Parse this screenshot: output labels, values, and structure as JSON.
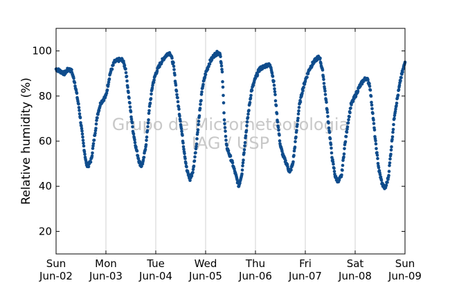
{
  "chart_data": {
    "type": "scatter",
    "title": "",
    "xlabel": "",
    "ylabel": "Relative humidity (%)",
    "ylim": [
      10,
      110
    ],
    "yticks": [
      20,
      40,
      60,
      80,
      100
    ],
    "xlim": [
      "2013-06-02",
      "2013-06-09"
    ],
    "x_ticks": [
      {
        "date": "2013-06-02",
        "day": "Sun",
        "date_label": "Jun-02"
      },
      {
        "date": "2013-06-03",
        "day": "Mon",
        "date_label": "Jun-03"
      },
      {
        "date": "2013-06-04",
        "day": "Tue",
        "date_label": "Jun-04"
      },
      {
        "date": "2013-06-05",
        "day": "Wed",
        "date_label": "Jun-05"
      },
      {
        "date": "2013-06-06",
        "day": "Thu",
        "date_label": "Jun-06"
      },
      {
        "date": "2013-06-07",
        "day": "Fri",
        "date_label": "Jun-07"
      },
      {
        "date": "2013-06-08",
        "day": "Sat",
        "date_label": "Jun-08"
      },
      {
        "date": "2013-06-09",
        "day": "Sun",
        "date_label": "Jun-09"
      }
    ],
    "grid": "vertical",
    "marker_color": "#0f4c8c",
    "watermark": [
      "Grupo de Micrometeorologia",
      "IAG / USP"
    ],
    "series": [
      {
        "name": "",
        "points": [
          [
            "2013-06-02 00:00",
            92
          ],
          [
            "2013-06-02 02:00",
            91
          ],
          [
            "2013-06-02 04:00",
            90
          ],
          [
            "2013-06-02 06:00",
            92
          ],
          [
            "2013-06-02 07:30",
            91
          ],
          [
            "2013-06-02 09:00",
            86
          ],
          [
            "2013-06-02 11:00",
            75
          ],
          [
            "2013-06-02 13:00",
            60
          ],
          [
            "2013-06-02 14:30",
            50
          ],
          [
            "2013-06-02 15:30",
            49
          ],
          [
            "2013-06-02 17:00",
            52
          ],
          [
            "2013-06-02 18:30",
            62
          ],
          [
            "2013-06-02 20:00",
            72
          ],
          [
            "2013-06-02 21:30",
            77
          ],
          [
            "2013-06-03 00:00",
            80
          ],
          [
            "2013-06-03 02:00",
            90
          ],
          [
            "2013-06-03 04:00",
            95
          ],
          [
            "2013-06-03 06:00",
            96
          ],
          [
            "2013-06-03 08:00",
            96
          ],
          [
            "2013-06-03 09:30",
            92
          ],
          [
            "2013-06-03 11:00",
            80
          ],
          [
            "2013-06-03 13:00",
            65
          ],
          [
            "2013-06-03 14:30",
            57
          ],
          [
            "2013-06-03 16:00",
            51
          ],
          [
            "2013-06-03 17:00",
            49
          ],
          [
            "2013-06-03 18:00",
            51
          ],
          [
            "2013-06-03 19:30",
            60
          ],
          [
            "2013-06-03 21:00",
            75
          ],
          [
            "2013-06-03 22:30",
            85
          ],
          [
            "2013-06-04 00:00",
            90
          ],
          [
            "2013-06-04 02:00",
            94
          ],
          [
            "2013-06-04 04:00",
            97
          ],
          [
            "2013-06-04 06:00",
            99
          ],
          [
            "2013-06-04 07:00",
            99
          ],
          [
            "2013-06-04 08:30",
            94
          ],
          [
            "2013-06-04 10:00",
            82
          ],
          [
            "2013-06-04 12:00",
            68
          ],
          [
            "2013-06-04 13:30",
            57
          ],
          [
            "2013-06-04 15:00",
            47
          ],
          [
            "2013-06-04 16:30",
            43
          ],
          [
            "2013-06-04 18:00",
            47
          ],
          [
            "2013-06-04 19:30",
            58
          ],
          [
            "2013-06-04 21:00",
            72
          ],
          [
            "2013-06-04 22:30",
            84
          ],
          [
            "2013-06-05 00:00",
            90
          ],
          [
            "2013-06-05 02:00",
            95
          ],
          [
            "2013-06-05 04:00",
            98
          ],
          [
            "2013-06-05 05:30",
            99
          ],
          [
            "2013-06-05 07:00",
            99
          ],
          [
            "2013-06-05 08:00",
            90
          ],
          [
            "2013-06-05 09:00",
            70
          ],
          [
            "2013-06-05 10:00",
            58
          ],
          [
            "2013-06-05 11:30",
            54
          ],
          [
            "2013-06-05 13:00",
            50
          ],
          [
            "2013-06-05 14:30",
            45
          ],
          [
            "2013-06-05 16:00",
            40
          ],
          [
            "2013-06-05 17:30",
            46
          ],
          [
            "2013-06-05 19:00",
            60
          ],
          [
            "2013-06-05 20:30",
            72
          ],
          [
            "2013-06-05 22:00",
            82
          ],
          [
            "2013-06-06 00:00",
            88
          ],
          [
            "2013-06-06 02:00",
            92
          ],
          [
            "2013-06-06 04:00",
            93
          ],
          [
            "2013-06-06 06:00",
            94
          ],
          [
            "2013-06-06 07:30",
            93
          ],
          [
            "2013-06-06 09:00",
            85
          ],
          [
            "2013-06-06 10:30",
            70
          ],
          [
            "2013-06-06 12:00",
            58
          ],
          [
            "2013-06-06 13:30",
            53
          ],
          [
            "2013-06-06 15:00",
            50
          ],
          [
            "2013-06-06 16:30",
            46
          ],
          [
            "2013-06-06 18:00",
            50
          ],
          [
            "2013-06-06 19:30",
            62
          ],
          [
            "2013-06-06 21:00",
            75
          ],
          [
            "2013-06-06 22:30",
            82
          ],
          [
            "2013-06-07 00:00",
            87
          ],
          [
            "2013-06-07 02:00",
            92
          ],
          [
            "2013-06-07 04:00",
            95
          ],
          [
            "2013-06-07 06:00",
            97
          ],
          [
            "2013-06-07 07:00",
            97
          ],
          [
            "2013-06-07 08:30",
            90
          ],
          [
            "2013-06-07 10:00",
            78
          ],
          [
            "2013-06-07 11:30",
            65
          ],
          [
            "2013-06-07 13:00",
            52
          ],
          [
            "2013-06-07 14:30",
            44
          ],
          [
            "2013-06-07 16:00",
            42
          ],
          [
            "2013-06-07 17:30",
            45
          ],
          [
            "2013-06-07 19:00",
            58
          ],
          [
            "2013-06-07 20:30",
            68
          ],
          [
            "2013-06-07 22:00",
            76
          ],
          [
            "2013-06-08 00:00",
            80
          ],
          [
            "2013-06-08 02:00",
            84
          ],
          [
            "2013-06-08 04:00",
            87
          ],
          [
            "2013-06-08 05:30",
            88
          ],
          [
            "2013-06-08 07:00",
            85
          ],
          [
            "2013-06-08 08:30",
            72
          ],
          [
            "2013-06-08 10:00",
            58
          ],
          [
            "2013-06-08 11:30",
            47
          ],
          [
            "2013-06-08 13:00",
            41
          ],
          [
            "2013-06-08 14:30",
            39
          ],
          [
            "2013-06-08 16:00",
            44
          ],
          [
            "2013-06-08 17:30",
            58
          ],
          [
            "2013-06-08 19:00",
            72
          ],
          [
            "2013-06-08 20:30",
            80
          ],
          [
            "2013-06-08 22:00",
            88
          ],
          [
            "2013-06-09 00:00",
            95
          ]
        ]
      }
    ]
  }
}
